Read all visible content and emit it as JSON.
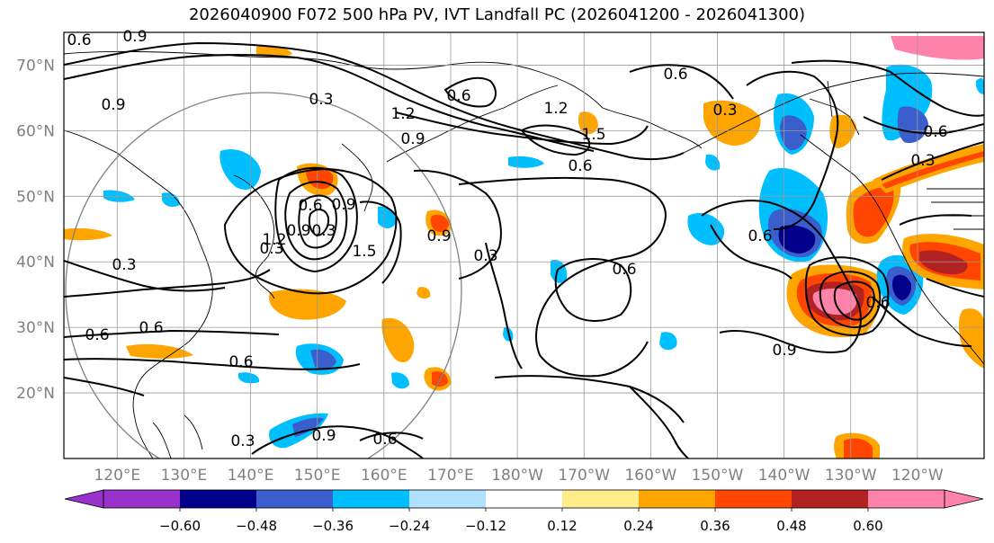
{
  "title": "2026040900 F072 500 hPa PV, IVT Landfall PC (2026041200 - 2026041300)",
  "map": {
    "projection": "PlateCarree",
    "lon_range": [
      112,
      250
    ],
    "lat_range": [
      10,
      75
    ],
    "lat_labels": [
      "20°N",
      "30°N",
      "40°N",
      "50°N",
      "60°N",
      "70°N"
    ],
    "lon_labels": [
      "120°E",
      "130°E",
      "140°E",
      "150°E",
      "160°E",
      "170°E",
      "180°W",
      "170°W",
      "160°W",
      "150°W",
      "140°W",
      "130°W",
      "120°W"
    ],
    "contour_labels": [
      "0.9",
      "0.6",
      "0.9",
      "0.3",
      "1.2",
      "0.9",
      "1.2",
      "1.5",
      "0.6",
      "0.6",
      "0.3",
      "0.9",
      "0.6",
      "0.9",
      "0.3",
      "1.2",
      "1.5",
      "0.9",
      "0.3",
      "0.6",
      "0.3",
      "0.6",
      "0.6",
      "0.6",
      "0.9",
      "0.3",
      "0.6",
      "0.9",
      "0.6",
      "0.6",
      "0.3",
      "0.6",
      "0.3",
      "0.6"
    ]
  },
  "colorbar": {
    "levels": [
      -0.72,
      -0.6,
      -0.48,
      -0.36,
      -0.24,
      -0.12,
      0.12,
      0.24,
      0.36,
      0.48,
      0.6,
      0.72
    ],
    "tick_labels": [
      "−0.60",
      "−0.48",
      "−0.36",
      "−0.24",
      "−0.12",
      "0.12",
      "0.24",
      "0.36",
      "0.48",
      "0.60"
    ],
    "colors": [
      "#9932cc",
      "#00008b",
      "#3a5fcd",
      "#00bfff",
      "#b0e2ff",
      "#ffffff",
      "#ffec8b",
      "#ffa500",
      "#ff4500",
      "#b22222",
      "#ff82ab"
    ],
    "extend": "both"
  },
  "colors": {
    "grid": "#999999",
    "coast": "#000000",
    "pv_contour": "#000000",
    "circle": "#808080"
  }
}
